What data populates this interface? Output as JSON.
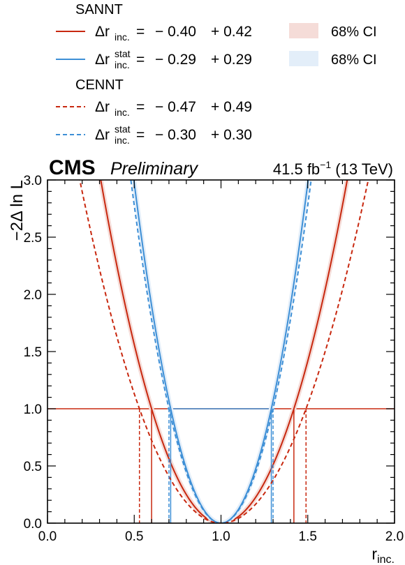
{
  "chart_data": {
    "type": "line",
    "experiment": "CMS",
    "status": "Preliminary",
    "luminosity": "41.5 fb",
    "lumi_exp": "−1",
    "energy": "(13 TeV)",
    "xlabel": "r",
    "xlabel_sub": "inc.",
    "ylabel": "−2Δ ln L",
    "xlim": [
      0.0,
      2.0
    ],
    "ylim": [
      0.0,
      3.0
    ],
    "x_ticks": [
      "0.0",
      "0.5",
      "1.0",
      "1.5",
      "2.0"
    ],
    "y_ticks": [
      "0.0",
      "0.5",
      "1.0",
      "1.5",
      "2.0",
      "2.5",
      "3.0"
    ],
    "reference_line_y": 1.0,
    "ci_label": "68% CI",
    "groups": [
      {
        "name": "SANNT",
        "series": [
          {
            "symbol": "Δr",
            "sub": "inc.",
            "sup": "",
            "minus": "− 0.40",
            "plus": "+ 0.42",
            "color": "#c8280f",
            "dash": "solid",
            "best_fit": 1.0,
            "down": 0.4,
            "up": 0.42,
            "band": true
          },
          {
            "symbol": "Δr",
            "sub": "inc.",
            "sup": "stat",
            "minus": "− 0.29",
            "plus": "+ 0.29",
            "color": "#3d8fd6",
            "dash": "solid",
            "best_fit": 1.0,
            "down": 0.29,
            "up": 0.29,
            "band": true
          }
        ]
      },
      {
        "name": "CENNT",
        "series": [
          {
            "symbol": "Δr",
            "sub": "inc.",
            "sup": "",
            "minus": "− 0.47",
            "plus": "+ 0.49",
            "color": "#c8280f",
            "dash": "dashed",
            "best_fit": 1.0,
            "down": 0.47,
            "up": 0.49,
            "band": false
          },
          {
            "symbol": "Δr",
            "sub": "inc.",
            "sup": "stat",
            "minus": "− 0.30",
            "plus": "+ 0.30",
            "color": "#3d8fd6",
            "dash": "dashed",
            "best_fit": 1.0,
            "down": 0.3,
            "up": 0.3,
            "band": false
          }
        ]
      }
    ],
    "ci_colors": [
      "#f5dcd8",
      "#e3eef9"
    ]
  }
}
